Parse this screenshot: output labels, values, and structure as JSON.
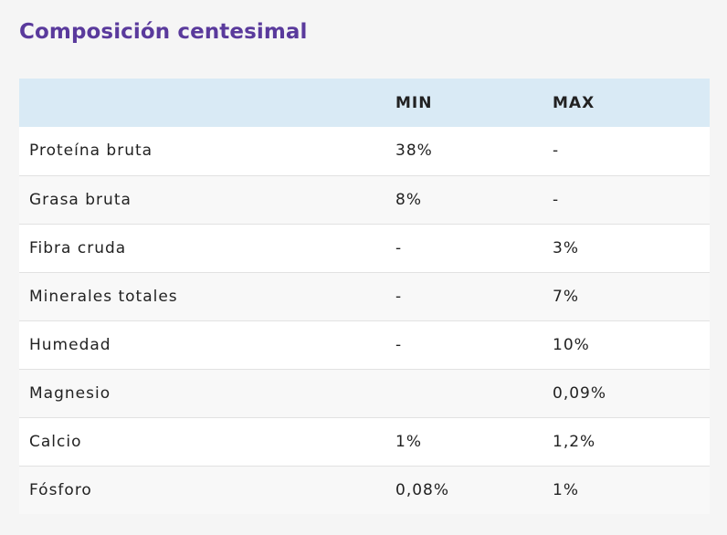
{
  "title": "Composición centesimal",
  "table": {
    "headers": [
      "",
      "MIN",
      "MAX"
    ],
    "rows": [
      {
        "name": "Proteína bruta",
        "min": "38%",
        "max": "-"
      },
      {
        "name": "Grasa bruta",
        "min": "8%",
        "max": "-"
      },
      {
        "name": "Fibra cruda",
        "min": "-",
        "max": "3%"
      },
      {
        "name": "Minerales totales",
        "min": "-",
        "max": "7%"
      },
      {
        "name": "Humedad",
        "min": "-",
        "max": "10%"
      },
      {
        "name": "Magnesio",
        "min": "",
        "max": "0,09%"
      },
      {
        "name": "Calcio",
        "min": "1%",
        "max": "1,2%"
      },
      {
        "name": "Fósforo",
        "min": "0,08%",
        "max": "1%"
      }
    ]
  },
  "colors": {
    "title": "#5a3a9c",
    "header_bg": "#d9eaf5",
    "row_bg_white": "#ffffff",
    "row_bg_grey": "#f8f8f8",
    "page_bg": "#f5f5f5"
  }
}
